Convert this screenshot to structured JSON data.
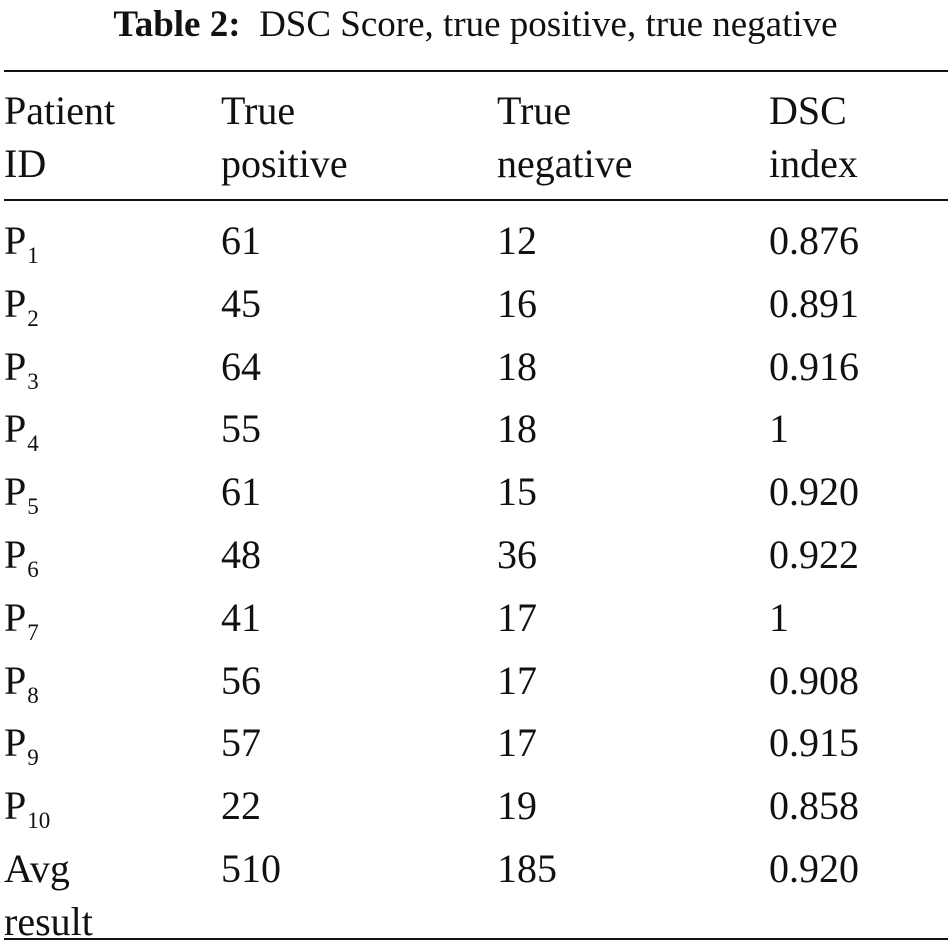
{
  "caption": {
    "label": "Table 2:",
    "text": "DSC Score, true positive, true negative"
  },
  "table": {
    "headers": [
      [
        "Patient",
        "ID"
      ],
      [
        "True",
        "positive"
      ],
      [
        "True",
        "negative"
      ],
      [
        "DSC",
        "index"
      ]
    ],
    "rows": [
      {
        "id": "P",
        "sub": "1",
        "tp": "61",
        "tn": "12",
        "dsc": "0.876"
      },
      {
        "id": "P",
        "sub": "2",
        "tp": "45",
        "tn": "16",
        "dsc": "0.891"
      },
      {
        "id": "P",
        "sub": "3",
        "tp": "64",
        "tn": "18",
        "dsc": "0.916"
      },
      {
        "id": "P",
        "sub": "4",
        "tp": "55",
        "tn": "18",
        "dsc": "1"
      },
      {
        "id": "P",
        "sub": "5",
        "tp": "61",
        "tn": "15",
        "dsc": "0.920"
      },
      {
        "id": "P",
        "sub": "6",
        "tp": "48",
        "tn": "36",
        "dsc": "0.922"
      },
      {
        "id": "P",
        "sub": "7",
        "tp": "41",
        "tn": "17",
        "dsc": "1"
      },
      {
        "id": "P",
        "sub": "8",
        "tp": "56",
        "tn": "17",
        "dsc": "0.908"
      },
      {
        "id": "P",
        "sub": "9",
        "tp": "57",
        "tn": "17",
        "dsc": "0.915"
      },
      {
        "id": "P",
        "sub": "10",
        "tp": "22",
        "tn": "19",
        "dsc": "0.858"
      }
    ],
    "summary": {
      "label": [
        "Avg",
        "result"
      ],
      "tp": "510",
      "tn": "185",
      "dsc": "0.920"
    }
  }
}
